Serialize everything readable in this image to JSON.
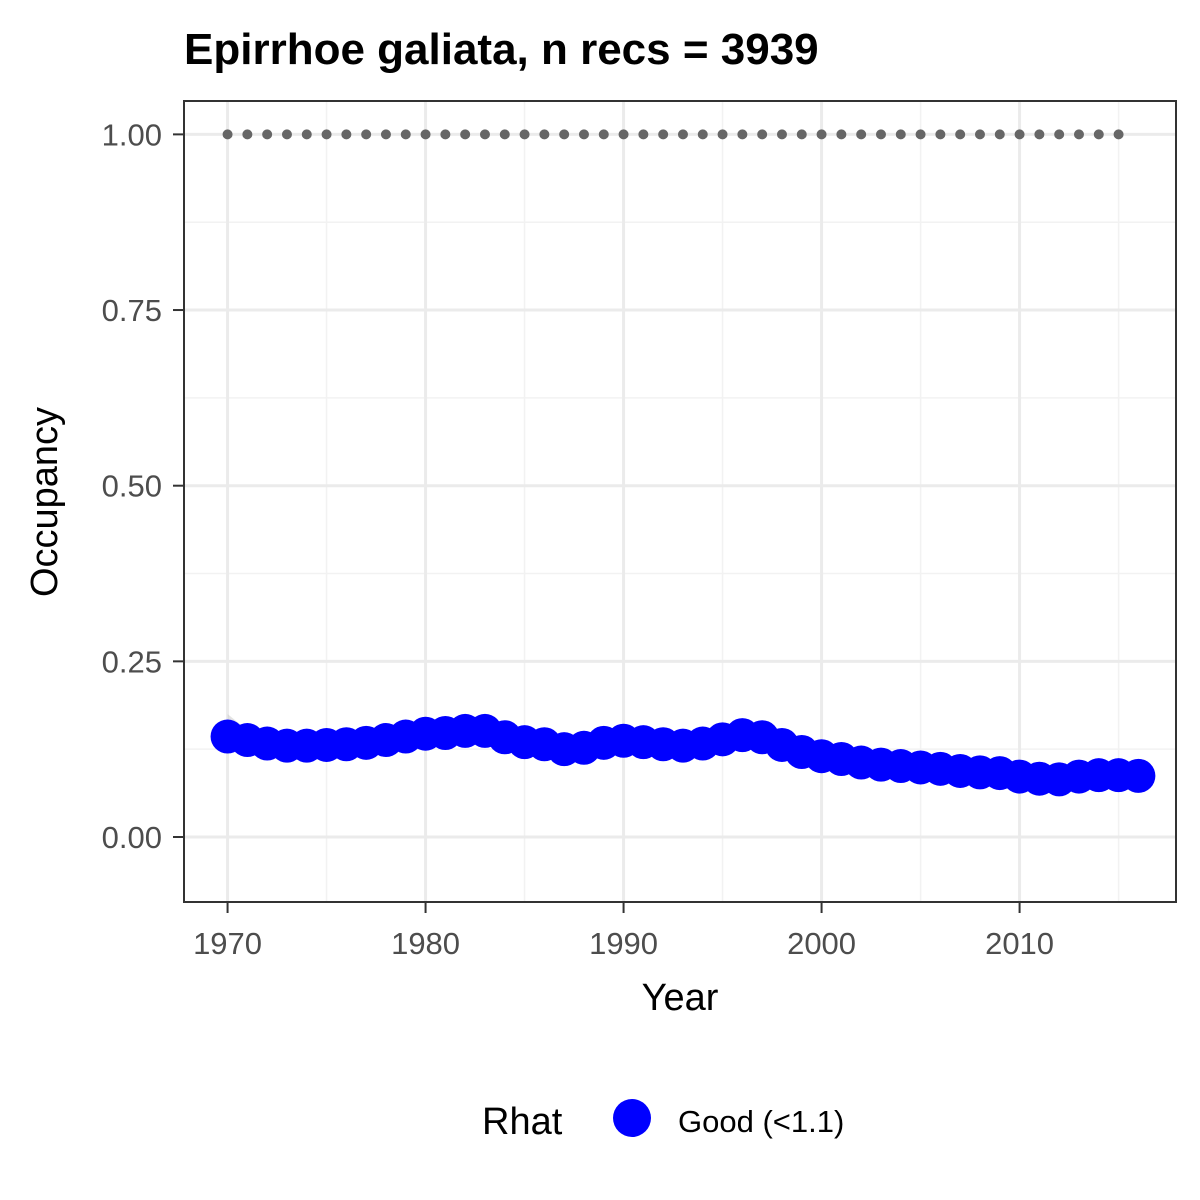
{
  "chart_data": {
    "type": "line",
    "title": "Epirrhoe galiata, n recs = 3939",
    "xlabel": "Year",
    "ylabel": "Occupancy",
    "xlim": [
      1967.8,
      2017.9
    ],
    "ylim": [
      -0.0925,
      1.0475
    ],
    "x_ticks": [
      {
        "value": 1970,
        "label": "1970"
      },
      {
        "value": 1980,
        "label": "1980"
      },
      {
        "value": 1990,
        "label": "1990"
      },
      {
        "value": 2000,
        "label": "2000"
      },
      {
        "value": 2010,
        "label": "2010"
      }
    ],
    "y_ticks": [
      {
        "value": 0,
        "label": "0.00"
      },
      {
        "value": 0.25,
        "label": "0.25"
      },
      {
        "value": 0.5,
        "label": "0.50"
      },
      {
        "value": 0.75,
        "label": "0.75"
      },
      {
        "value": 1,
        "label": "1.00"
      }
    ],
    "grid": true,
    "legend": {
      "position": "bottom",
      "title": "Rhat",
      "items": [
        {
          "label": "Good (<1.1)",
          "color": "#0000ff"
        }
      ]
    },
    "series": [
      {
        "color": "#0000ff",
        "x": [
          1970,
          1971,
          1972,
          1973,
          1974,
          1975,
          1976,
          1977,
          1978,
          1979,
          1980,
          1981,
          1982,
          1983,
          1984,
          1985,
          1986,
          1987,
          1988,
          1989,
          1990,
          1991,
          1992,
          1993,
          1994,
          1995,
          1996,
          1997,
          1998,
          1999,
          2000,
          2001,
          2002,
          2003,
          2004,
          2005,
          2006,
          2007,
          2008,
          2009,
          2010,
          2011,
          2012,
          2013,
          2014,
          2015,
          2016
        ],
        "y": [
          0.143,
          0.138,
          0.133,
          0.13,
          0.13,
          0.131,
          0.132,
          0.134,
          0.138,
          0.143,
          0.147,
          0.148,
          0.151,
          0.151,
          0.142,
          0.135,
          0.132,
          0.125,
          0.127,
          0.134,
          0.137,
          0.135,
          0.132,
          0.13,
          0.133,
          0.139,
          0.145,
          0.142,
          0.131,
          0.121,
          0.115,
          0.111,
          0.106,
          0.103,
          0.101,
          0.099,
          0.097,
          0.094,
          0.092,
          0.091,
          0.086,
          0.083,
          0.082,
          0.086,
          0.088,
          0.088,
          0.087
        ],
        "ci_lower": [
          0.128,
          0.125,
          0.121,
          0.118,
          0.118,
          0.119,
          0.12,
          0.122,
          0.126,
          0.131,
          0.135,
          0.136,
          0.139,
          0.139,
          0.13,
          0.123,
          0.12,
          0.113,
          0.115,
          0.122,
          0.125,
          0.123,
          0.12,
          0.118,
          0.121,
          0.127,
          0.133,
          0.13,
          0.119,
          0.11,
          0.104,
          0.1,
          0.096,
          0.093,
          0.091,
          0.089,
          0.087,
          0.085,
          0.083,
          0.082,
          0.077,
          0.074,
          0.073,
          0.077,
          0.079,
          0.078,
          0.074
        ],
        "ci_upper": [
          0.175,
          0.152,
          0.145,
          0.142,
          0.142,
          0.143,
          0.144,
          0.146,
          0.15,
          0.155,
          0.159,
          0.16,
          0.163,
          0.163,
          0.154,
          0.147,
          0.144,
          0.137,
          0.139,
          0.146,
          0.149,
          0.147,
          0.144,
          0.142,
          0.145,
          0.151,
          0.157,
          0.154,
          0.143,
          0.132,
          0.126,
          0.122,
          0.116,
          0.113,
          0.111,
          0.109,
          0.107,
          0.103,
          0.101,
          0.1,
          0.095,
          0.092,
          0.091,
          0.095,
          0.097,
          0.098,
          0.1
        ]
      },
      {
        "style": "dotted",
        "color": "#666666",
        "x": [
          1970,
          2015
        ],
        "y": [
          1.0,
          1.0
        ]
      }
    ]
  }
}
